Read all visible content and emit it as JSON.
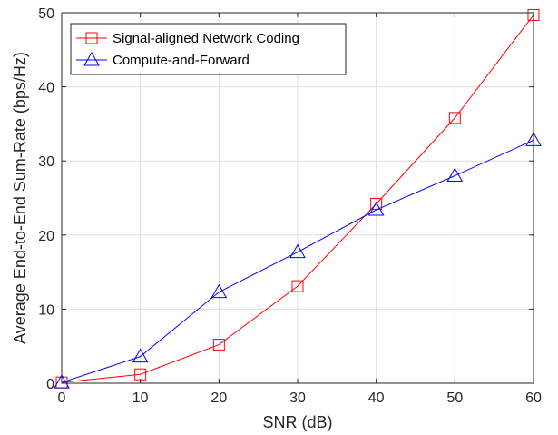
{
  "chart_data": {
    "type": "line",
    "xlabel": "SNR (dB)",
    "ylabel": "Average End-to-End Sum-Rate (bps/Hz)",
    "xlim": [
      0,
      60
    ],
    "ylim": [
      0,
      50
    ],
    "xticks": [
      0,
      10,
      20,
      30,
      40,
      50,
      60
    ],
    "yticks": [
      0,
      10,
      20,
      30,
      40,
      50
    ],
    "grid": true,
    "legend_position": "top-left",
    "x": [
      0,
      10,
      20,
      30,
      40,
      50,
      60
    ],
    "series": [
      {
        "name": "Signal-aligned Network Coding",
        "color": "#ff0000",
        "marker": "square",
        "values": [
          0.1,
          1.2,
          5.2,
          13.1,
          24.2,
          35.8,
          49.7
        ]
      },
      {
        "name": "Compute-and-Forward",
        "color": "#0000ff",
        "marker": "triangle",
        "values": [
          0.1,
          3.6,
          12.3,
          17.7,
          23.4,
          28.0,
          32.8
        ]
      }
    ]
  }
}
